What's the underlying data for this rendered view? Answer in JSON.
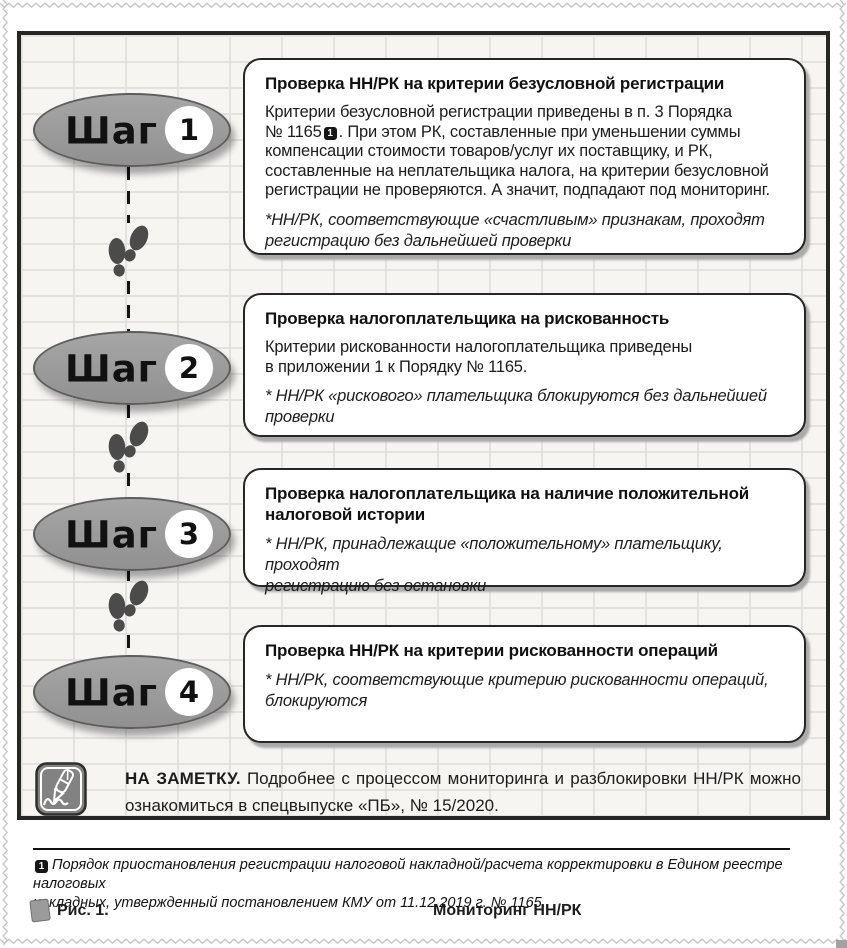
{
  "steps": [
    {
      "badge_label": "Шаг",
      "badge_number": "1",
      "title": "Проверка НН/РК на критерии безусловной регистрации",
      "body_before": "Критерии безусловной регистрации приведены в п. 3 Порядка\n№ 1165",
      "body_marker": "1",
      "body_after": ". При этом РК, составленные при уменьшении суммы\nкомпенсации стоимости товаров/услуг их поставщику, и РК,\nсоставленные на неплательщика налога, на критерии безусловной\nрегистрации не проверяются. А значит, подпадают под мониторинг.",
      "note": "*НН/РК, соответствующие «счастливым» признакам, проходят\nрегистрацию без дальнейшей проверки"
    },
    {
      "badge_label": "Шаг",
      "badge_number": "2",
      "title": "Проверка налогоплательщика на рискованность",
      "body": "Критерии рискованности налогоплательщика приведены\nв приложении 1 к Порядку № 1165.",
      "note": "* НН/РК «рискового» плательщика блокируются без дальнейшей\nпроверки"
    },
    {
      "badge_label": "Шаг",
      "badge_number": "3",
      "title": "Проверка налогоплательщика на наличие положительной\nналоговой истории",
      "note": "* НН/РК, принадлежащие «положительному» плательщику, проходят\nрегистрацию без остановки"
    },
    {
      "badge_label": "Шаг",
      "badge_number": "4",
      "title": "Проверка НН/РК на критерии рискованности операций",
      "note": "* НН/РК, соответствующие критерию рискованности операций,\nблокируются"
    }
  ],
  "note_box": {
    "label": "НА ЗАМЕТКУ.",
    "line1": "Подробнее с процессом мониторинга и разблокировки НН/РК можно",
    "line2": "ознакомиться в спецвыпуске «ПБ», № 15/2020."
  },
  "footnote": {
    "marker": "1",
    "text": "Порядок приостановления регистрации налоговой накладной/расчета корректировки в Едином реестре налоговых\nнакладных, утвержденный постановлением КМУ от 11.12.2019 г. № 1165."
  },
  "caption": {
    "label": "Рис. 1.",
    "title": "Мониторинг НН/РК"
  },
  "icons": {
    "note_strip": "pen-icon",
    "connector": "footprints-icon",
    "caption": "page-icon"
  },
  "colors": {
    "frame_border": "#262626",
    "oval_fill": "#9c9c9c",
    "brick": "#f6f5f2",
    "mortar": "#e4e2de",
    "marker_bg": "#161616"
  }
}
